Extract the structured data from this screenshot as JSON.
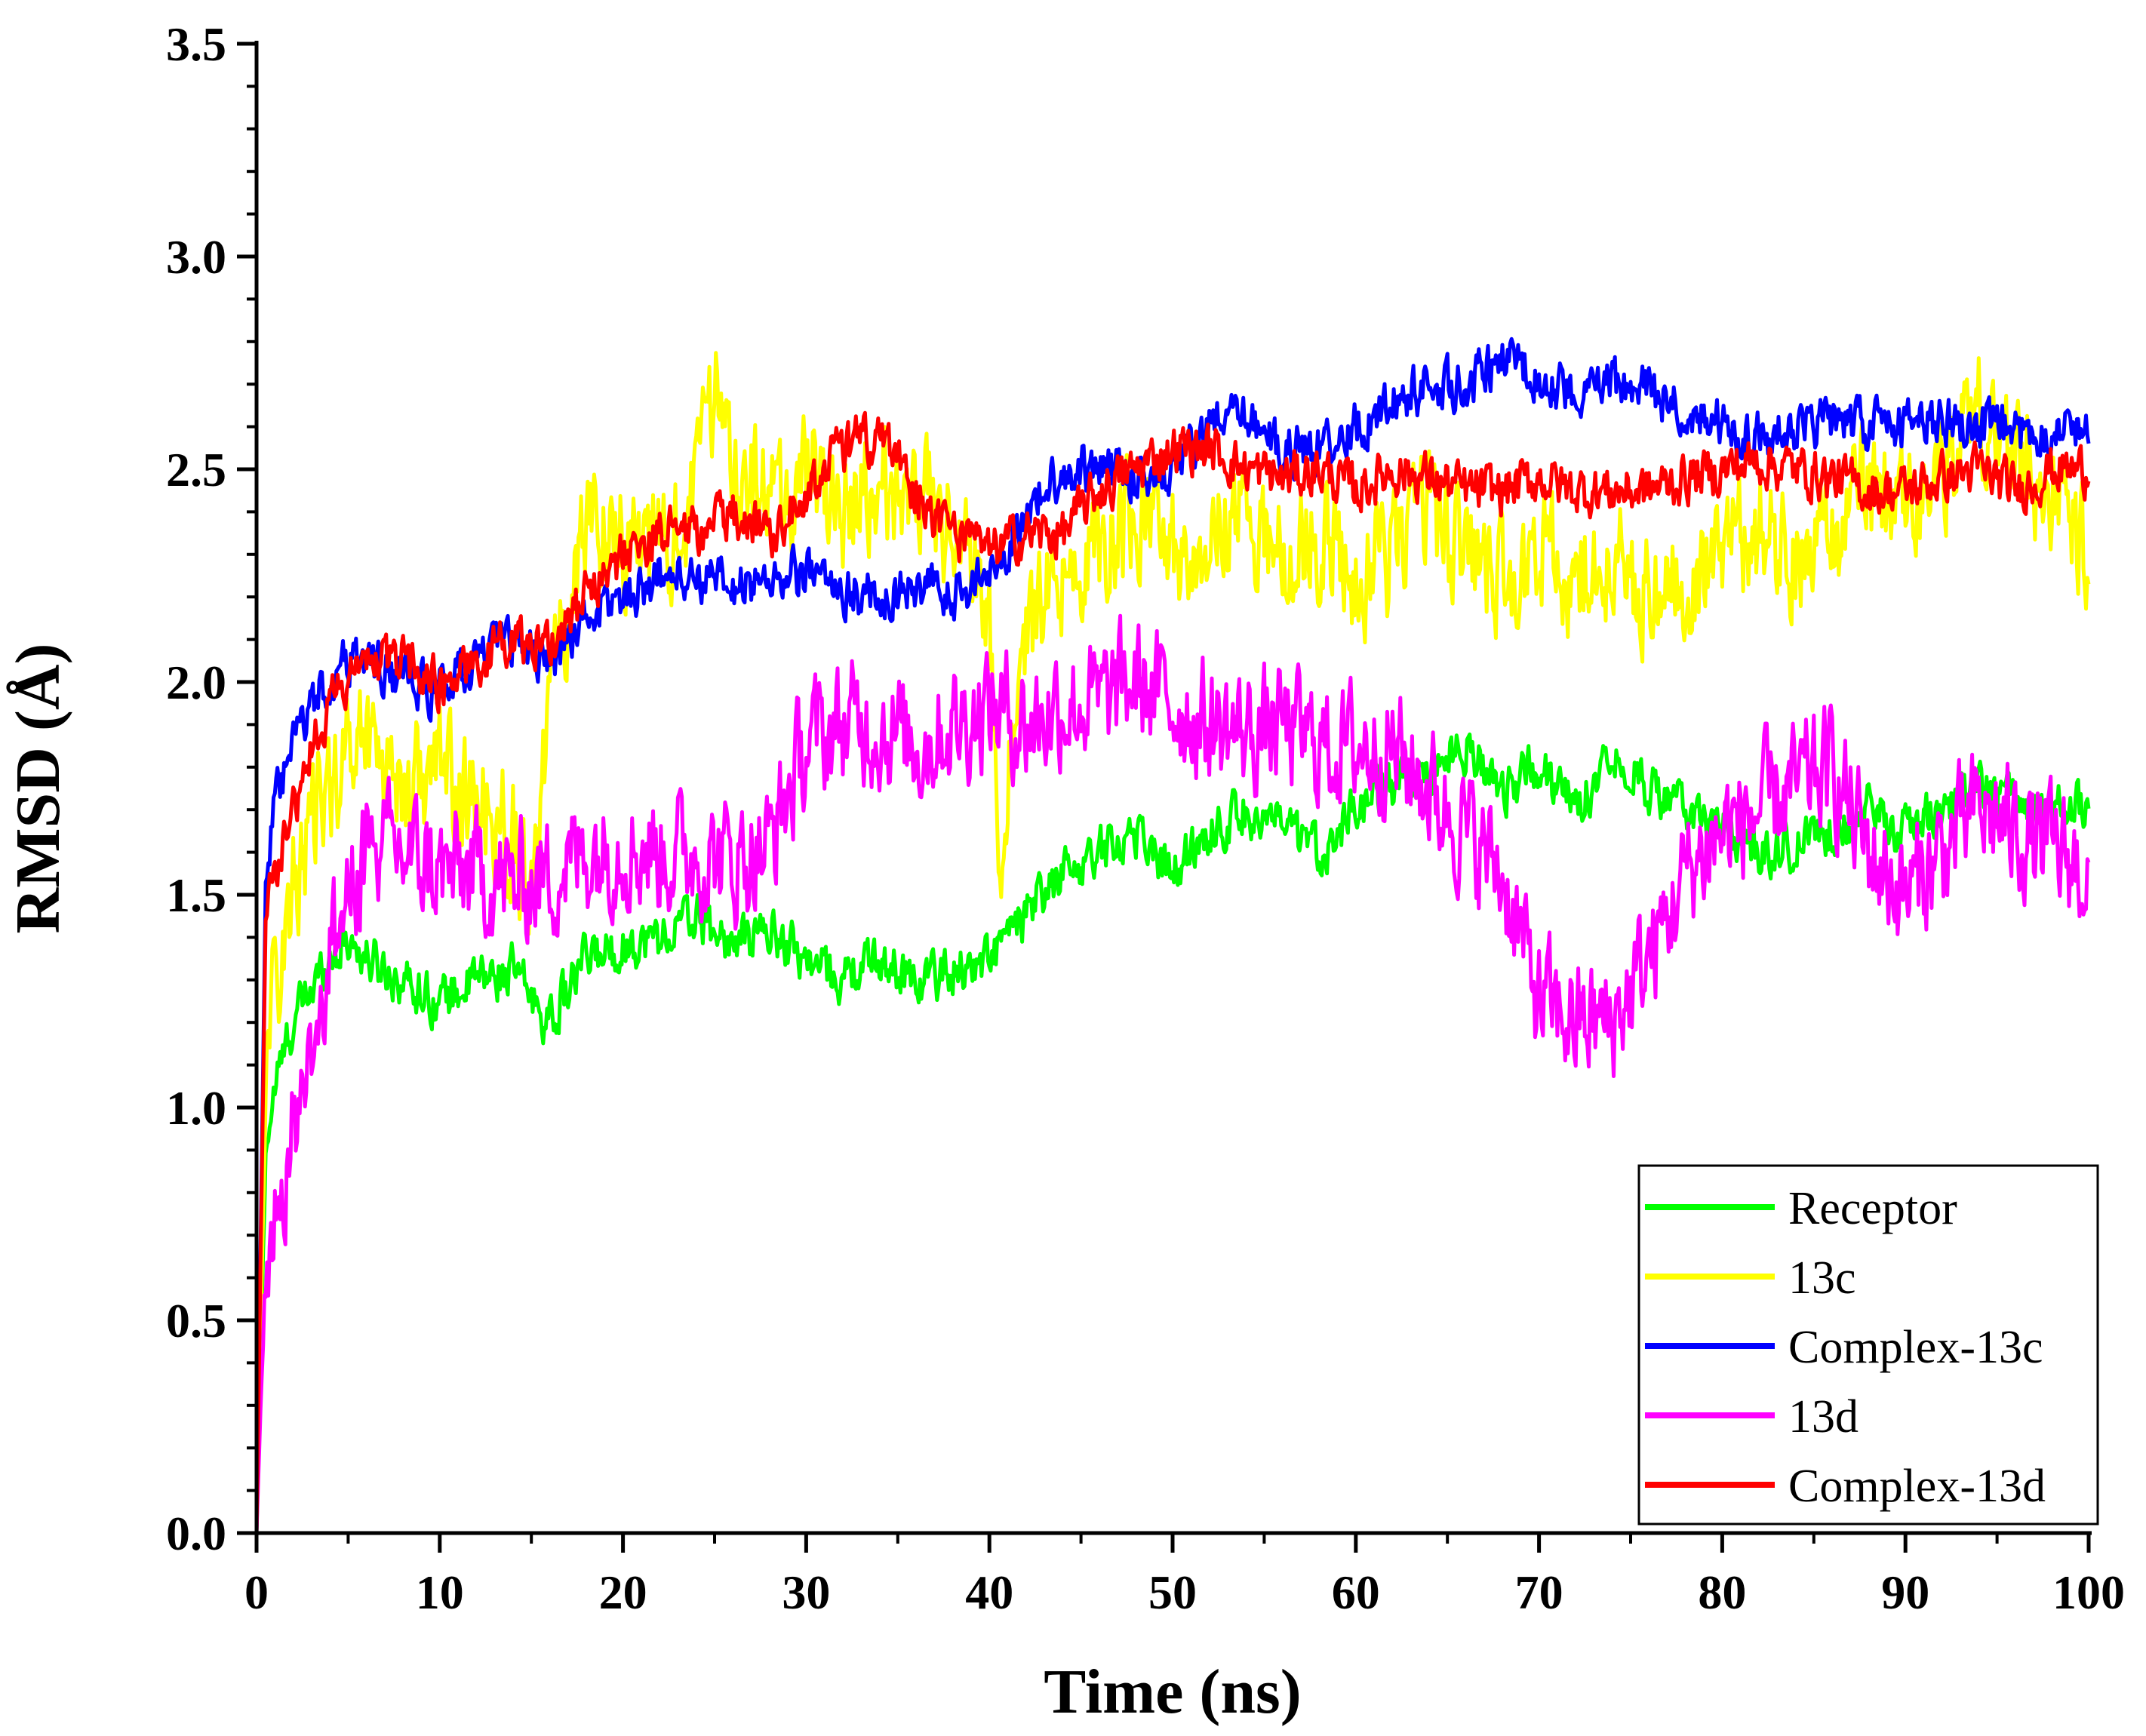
{
  "chart_data": {
    "type": "line",
    "xlabel": "Time (ns)",
    "ylabel": "RMSD (Å)",
    "xlim": [
      0,
      100
    ],
    "ylim": [
      0,
      3.5
    ],
    "xticks": [
      0,
      10,
      20,
      30,
      40,
      50,
      60,
      70,
      80,
      90,
      100
    ],
    "yticks": [
      0.0,
      0.5,
      1.0,
      1.5,
      2.0,
      2.5,
      3.0,
      3.5
    ],
    "xtick_labels": [
      "0",
      "10",
      "20",
      "30",
      "40",
      "50",
      "60",
      "70",
      "80",
      "90",
      "100"
    ],
    "ytick_labels": [
      "0.0",
      "0.5",
      "1.0",
      "1.5",
      "2.0",
      "2.5",
      "3.0",
      "3.5"
    ],
    "legend_position": "bottom-right",
    "series": [
      {
        "name": "Receptor",
        "color": "#00ff00",
        "x": [
          0,
          0.5,
          1,
          2,
          3,
          4,
          5,
          6,
          8,
          10,
          12,
          14,
          16,
          18,
          20,
          22,
          24,
          26,
          28,
          30,
          32,
          34,
          36,
          38,
          40,
          42,
          44,
          46,
          48,
          50,
          52,
          54,
          56,
          58,
          60,
          62,
          64,
          66,
          68,
          70,
          72,
          74,
          76,
          78,
          80,
          82,
          84,
          86,
          88,
          90,
          92,
          94,
          96,
          98,
          100
        ],
        "y": [
          0.0,
          0.9,
          1.05,
          1.2,
          1.28,
          1.35,
          1.4,
          1.35,
          1.3,
          1.25,
          1.3,
          1.32,
          1.2,
          1.35,
          1.38,
          1.4,
          1.45,
          1.38,
          1.42,
          1.35,
          1.3,
          1.35,
          1.3,
          1.32,
          1.35,
          1.45,
          1.55,
          1.6,
          1.65,
          1.55,
          1.65,
          1.7,
          1.65,
          1.6,
          1.7,
          1.75,
          1.8,
          1.85,
          1.75,
          1.8,
          1.7,
          1.85,
          1.75,
          1.7,
          1.65,
          1.6,
          1.62,
          1.65,
          1.7,
          1.65,
          1.7,
          1.75,
          1.72,
          1.7,
          1.72
        ]
      },
      {
        "name": "13c",
        "color": "#ffff00",
        "x": [
          0,
          0.5,
          1,
          2,
          3,
          4,
          5,
          6,
          8,
          10,
          12,
          14,
          15,
          16,
          18,
          20,
          22,
          24,
          25,
          26,
          28,
          30,
          32,
          34,
          36,
          38,
          40,
          40.5,
          42,
          44,
          46,
          48,
          50,
          52,
          54,
          56,
          58,
          60,
          62,
          64,
          66,
          68,
          70,
          72,
          74,
          76,
          78,
          80,
          82,
          84,
          86,
          88,
          90,
          92,
          94,
          96,
          98,
          100
        ],
        "y": [
          0.0,
          1.1,
          1.3,
          1.5,
          1.65,
          1.75,
          1.85,
          1.9,
          1.75,
          1.8,
          1.7,
          1.65,
          1.45,
          1.95,
          2.4,
          2.35,
          2.3,
          2.45,
          2.7,
          2.55,
          2.4,
          2.5,
          2.4,
          2.45,
          2.45,
          2.35,
          2.2,
          1.6,
          2.1,
          2.25,
          2.3,
          2.4,
          2.3,
          2.35,
          2.4,
          2.3,
          2.35,
          2.25,
          2.3,
          2.4,
          2.3,
          2.25,
          2.3,
          2.25,
          2.3,
          2.2,
          2.25,
          2.3,
          2.35,
          2.3,
          2.35,
          2.45,
          2.4,
          2.5,
          2.65,
          2.5,
          2.45,
          2.3
        ]
      },
      {
        "name": "Complex-13c",
        "color": "#0000ff",
        "x": [
          0,
          0.5,
          1,
          2,
          3,
          4,
          5,
          6,
          8,
          10,
          12,
          14,
          16,
          18,
          20,
          22,
          24,
          26,
          28,
          30,
          32,
          34,
          36,
          38,
          40,
          42,
          44,
          46,
          48,
          50,
          52,
          54,
          56,
          58,
          60,
          62,
          64,
          66,
          68,
          70,
          72,
          74,
          76,
          78,
          80,
          82,
          84,
          86,
          88,
          90,
          92,
          94,
          96,
          98,
          100
        ],
        "y": [
          0.0,
          1.55,
          1.7,
          1.85,
          1.95,
          2.0,
          2.05,
          2.05,
          2.0,
          1.98,
          2.05,
          2.1,
          2.05,
          2.15,
          2.2,
          2.25,
          2.25,
          2.22,
          2.25,
          2.25,
          2.22,
          2.2,
          2.22,
          2.2,
          2.25,
          2.4,
          2.5,
          2.5,
          2.48,
          2.5,
          2.6,
          2.62,
          2.55,
          2.55,
          2.6,
          2.65,
          2.7,
          2.7,
          2.75,
          2.72,
          2.68,
          2.7,
          2.68,
          2.65,
          2.6,
          2.58,
          2.6,
          2.62,
          2.6,
          2.6,
          2.62,
          2.6,
          2.58,
          2.6,
          2.6
        ]
      },
      {
        "name": "13d",
        "color": "#ff00ff",
        "x": [
          0,
          0.5,
          1,
          2,
          3,
          4,
          5,
          6,
          8,
          10,
          12,
          14,
          16,
          18,
          20,
          22,
          24,
          26,
          28,
          30,
          32,
          34,
          36,
          38,
          40,
          42,
          44,
          46,
          48,
          50,
          52,
          54,
          56,
          58,
          60,
          62,
          64,
          66,
          68,
          70,
          72,
          74,
          76,
          78,
          80,
          82,
          84,
          86,
          88,
          90,
          92,
          94,
          96,
          98,
          100
        ],
        "y": [
          0.0,
          0.6,
          0.75,
          0.95,
          1.15,
          1.35,
          1.5,
          1.6,
          1.6,
          1.55,
          1.55,
          1.52,
          1.55,
          1.6,
          1.62,
          1.6,
          1.6,
          1.58,
          1.62,
          1.85,
          1.9,
          1.9,
          1.85,
          1.9,
          1.95,
          1.9,
          1.95,
          1.95,
          2.0,
          1.95,
          1.9,
          1.88,
          1.9,
          1.85,
          1.85,
          1.85,
          1.75,
          1.65,
          1.55,
          1.25,
          1.2,
          1.2,
          1.35,
          1.55,
          1.65,
          1.7,
          1.75,
          1.8,
          1.6,
          1.5,
          1.6,
          1.7,
          1.65,
          1.6,
          1.55
        ]
      },
      {
        "name": "Complex-13d",
        "color": "#ff0000",
        "x": [
          0,
          0.5,
          1,
          2,
          3,
          4,
          5,
          6,
          8,
          10,
          12,
          14,
          16,
          18,
          20,
          22,
          24,
          26,
          28,
          30,
          32,
          34,
          36,
          38,
          40,
          42,
          44,
          46,
          48,
          50,
          52,
          54,
          56,
          58,
          60,
          62,
          64,
          66,
          68,
          70,
          72,
          74,
          76,
          78,
          80,
          82,
          84,
          86,
          88,
          90,
          92,
          94,
          96,
          98,
          100
        ],
        "y": [
          0.0,
          1.45,
          1.55,
          1.7,
          1.85,
          1.95,
          2.0,
          2.05,
          2.05,
          2.0,
          2.05,
          2.1,
          2.1,
          2.2,
          2.3,
          2.35,
          2.35,
          2.4,
          2.35,
          2.45,
          2.55,
          2.58,
          2.45,
          2.35,
          2.3,
          2.35,
          2.35,
          2.45,
          2.5,
          2.55,
          2.55,
          2.5,
          2.48,
          2.5,
          2.45,
          2.5,
          2.48,
          2.45,
          2.45,
          2.48,
          2.45,
          2.45,
          2.45,
          2.48,
          2.5,
          2.52,
          2.5,
          2.48,
          2.45,
          2.45,
          2.48,
          2.5,
          2.45,
          2.5,
          2.5
        ]
      }
    ]
  }
}
